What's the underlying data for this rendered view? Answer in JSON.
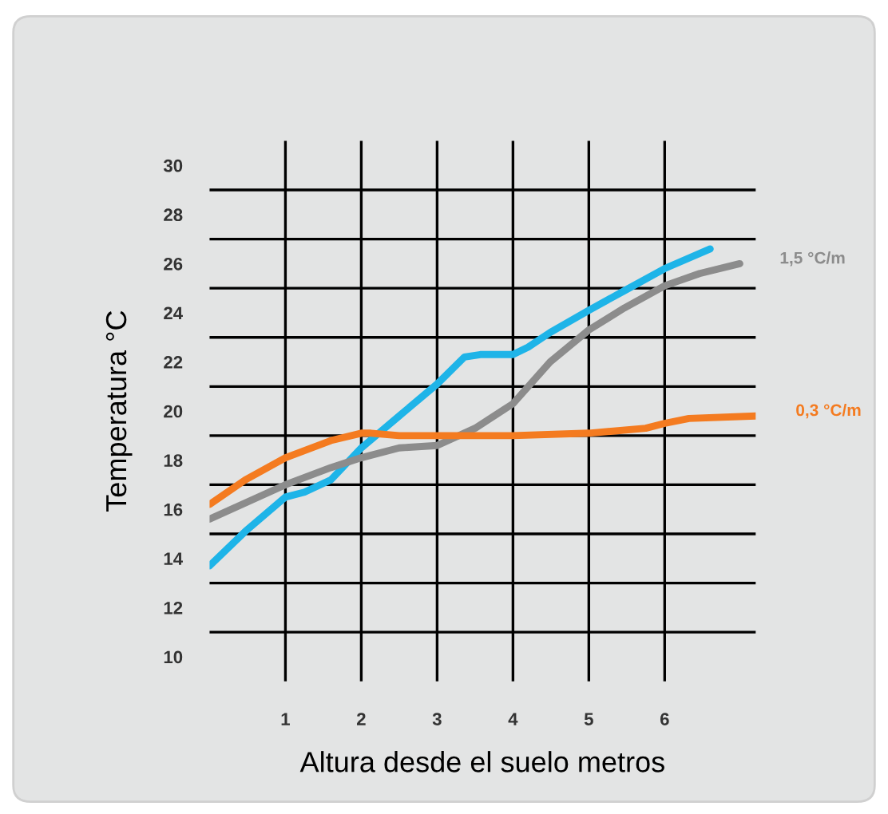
{
  "chart_data": {
    "type": "line",
    "xlabel": "Altura desde el suelo metros",
    "ylabel": "Temperatura °C",
    "xlim": [
      0,
      7.2
    ],
    "ylim": [
      9,
      31
    ],
    "xticks": [
      1,
      2,
      3,
      4,
      5,
      6
    ],
    "yticks": [
      10,
      {
        "value": 11,
        "label": null
      },
      12,
      {
        "value": 13,
        "label": null
      },
      14,
      {
        "value": 15,
        "label": null
      },
      16,
      {
        "value": 17,
        "label": null
      },
      18,
      {
        "value": 19,
        "label": null
      },
      20,
      {
        "value": 21,
        "label": null
      },
      22,
      {
        "value": 23,
        "label": null
      },
      24,
      {
        "value": 25,
        "label": null
      },
      26,
      {
        "value": 27,
        "label": null
      },
      28,
      {
        "value": 29,
        "label": null
      },
      30
    ],
    "grid": true,
    "legend": false,
    "marker": "none",
    "line_style": "solid",
    "series": [
      {
        "color": "#1eb4e8",
        "x": [
          0,
          0.47,
          1,
          1.25,
          1.6,
          2,
          2.5,
          3,
          3.36,
          3.57,
          4,
          4.2,
          4.49,
          5,
          5.47,
          6,
          6.6
        ],
        "values": [
          13.7,
          15.1,
          16.5,
          16.7,
          17.2,
          18.5,
          19.8,
          21.1,
          22.2,
          22.3,
          22.3,
          22.6,
          23.2,
          24.1,
          24.9,
          25.8,
          26.6
        ]
      },
      {
        "name": "1,5 °C/m",
        "color": "#8c8c8c",
        "x": [
          0,
          1,
          1.6,
          2,
          2.5,
          3,
          3.5,
          4,
          4.49,
          5,
          5.47,
          6,
          6.46,
          6.99
        ],
        "values": [
          15.6,
          17.0,
          17.7,
          18.1,
          18.5,
          18.6,
          19.3,
          20.3,
          22.0,
          23.3,
          24.2,
          25.1,
          25.6,
          26.0
        ]
      },
      {
        "name": "0,3 °C/m",
        "color": "#f47b20",
        "x": [
          0,
          0.47,
          1,
          1.6,
          2,
          2.13,
          2.5,
          3,
          4,
          5,
          5.75,
          6,
          6.32,
          7.2
        ],
        "values": [
          16.2,
          17.2,
          18.1,
          18.8,
          19.1,
          19.1,
          19.0,
          19.0,
          19.0,
          19.1,
          19.3,
          19.5,
          19.7,
          19.8
        ]
      }
    ]
  }
}
